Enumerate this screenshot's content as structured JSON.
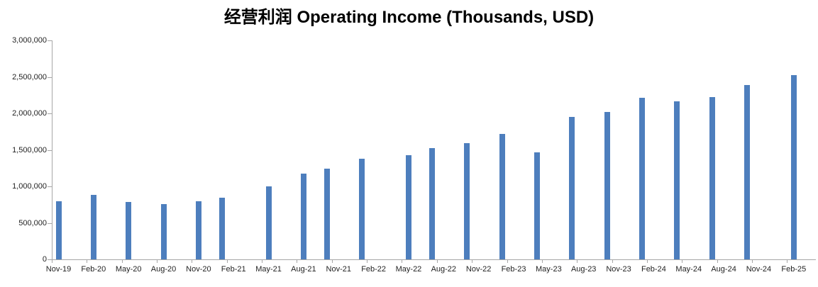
{
  "title": "经营利润 Operating Income (Thousands, USD)",
  "colors": {
    "bar": "#4d7ebd",
    "axis": "#a6a6a6",
    "tick": "#a6a6a6",
    "label_text": "#1f1f1f",
    "title_text": "#000000",
    "background": "#ffffff"
  },
  "chart_data": {
    "type": "bar",
    "title": "经营利润 Operating Income (Thousands, USD)",
    "series_name": "Operating Income",
    "unit": "Thousands, USD",
    "xlabel": "",
    "ylabel": "",
    "ylim": [
      0,
      3000000
    ],
    "grid": false,
    "legend": false,
    "y_ticks": [
      {
        "value": 0,
        "label": "0"
      },
      {
        "value": 500000,
        "label": "500,000"
      },
      {
        "value": 1000000,
        "label": "1,000,000"
      },
      {
        "value": 1500000,
        "label": "1,500,000"
      },
      {
        "value": 2000000,
        "label": "2,000,000"
      },
      {
        "value": 2500000,
        "label": "2,500,000"
      },
      {
        "value": 3000000,
        "label": "3,000,000"
      }
    ],
    "x_ticks": [
      {
        "month": 0,
        "label": "Nov-19"
      },
      {
        "month": 3,
        "label": "Feb-20"
      },
      {
        "month": 6,
        "label": "May-20"
      },
      {
        "month": 9,
        "label": "Aug-20"
      },
      {
        "month": 12,
        "label": "Nov-20"
      },
      {
        "month": 15,
        "label": "Feb-21"
      },
      {
        "month": 18,
        "label": "May-21"
      },
      {
        "month": 21,
        "label": "Aug-21"
      },
      {
        "month": 24,
        "label": "Nov-21"
      },
      {
        "month": 27,
        "label": "Feb-22"
      },
      {
        "month": 30,
        "label": "May-22"
      },
      {
        "month": 33,
        "label": "Aug-22"
      },
      {
        "month": 36,
        "label": "Nov-22"
      },
      {
        "month": 39,
        "label": "Feb-23"
      },
      {
        "month": 42,
        "label": "May-23"
      },
      {
        "month": 45,
        "label": "Aug-23"
      },
      {
        "month": 48,
        "label": "Nov-23"
      },
      {
        "month": 51,
        "label": "Feb-24"
      },
      {
        "month": 54,
        "label": "May-24"
      },
      {
        "month": 57,
        "label": "Aug-24"
      },
      {
        "month": 60,
        "label": "Nov-24"
      },
      {
        "month": 63,
        "label": "Feb-25"
      }
    ],
    "points": [
      {
        "period": "Nov-19",
        "month": 0,
        "value": 800000
      },
      {
        "period": "Feb-20",
        "month": 3,
        "value": 885000
      },
      {
        "period": "May-20",
        "month": 6,
        "value": 790000
      },
      {
        "period": "Aug-20",
        "month": 9,
        "value": 760000
      },
      {
        "period": "Nov-20",
        "month": 12,
        "value": 800000
      },
      {
        "period": "Feb-21",
        "month": 14,
        "value": 845000
      },
      {
        "period": "May-21",
        "month": 18,
        "value": 1000000
      },
      {
        "period": "Aug-21",
        "month": 21,
        "value": 1170000
      },
      {
        "period": "Nov-21",
        "month": 23,
        "value": 1240000
      },
      {
        "period": "Feb-22",
        "month": 26,
        "value": 1380000
      },
      {
        "period": "May-22",
        "month": 30,
        "value": 1430000
      },
      {
        "period": "Aug-22",
        "month": 32,
        "value": 1520000
      },
      {
        "period": "Nov-22",
        "month": 35,
        "value": 1595000
      },
      {
        "period": "Feb-23",
        "month": 38,
        "value": 1720000
      },
      {
        "period": "May-23",
        "month": 41,
        "value": 1465000
      },
      {
        "period": "Aug-23",
        "month": 44,
        "value": 1950000
      },
      {
        "period": "Nov-23",
        "month": 47,
        "value": 2020000
      },
      {
        "period": "Feb-24",
        "month": 50,
        "value": 2215000
      },
      {
        "period": "May-24",
        "month": 53,
        "value": 2165000
      },
      {
        "period": "Aug-24",
        "month": 56,
        "value": 2225000
      },
      {
        "period": "Nov-24",
        "month": 59,
        "value": 2390000
      },
      {
        "period": "Feb-25",
        "month": 63,
        "value": 2525000
      }
    ]
  }
}
